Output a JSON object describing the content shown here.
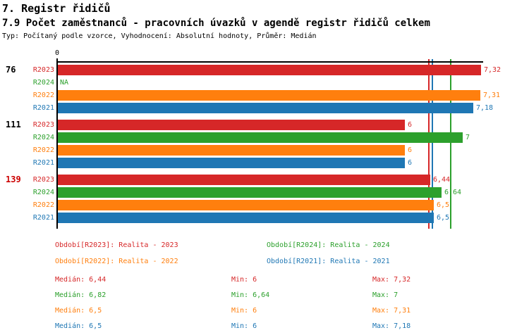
{
  "header": {
    "title": "7. Registr řidičů",
    "subtitle": "7.9 Počet zaměstnanců - pracovních úvazků v agendě registr řidičů celkem",
    "meta": "Typ: Počítaný podle vzorce, Vyhodnocení: Absolutní hodnoty, Průměr: Medián"
  },
  "colors": {
    "R2023": "#d62728",
    "R2024": "#2ca02c",
    "R2022": "#ff7f0e",
    "R2021": "#1f77b4",
    "axis": "#000000",
    "group_label_default": "#000000",
    "group_label_highlight": "#cc0000"
  },
  "chart_data": {
    "type": "bar",
    "orientation": "horizontal",
    "title": "7.9 Počet zaměstnanců - pracovních úvazků v agendě registr řidičů celkem",
    "xlim": [
      0,
      7.37
    ],
    "origin_tick_label": "0",
    "grid": false,
    "series_order": [
      "R2023",
      "R2024",
      "R2022",
      "R2021"
    ],
    "groups": [
      {
        "label": "76",
        "label_color": "#000000",
        "bars": [
          {
            "series": "R2023",
            "value": 7.32,
            "display": "7,32"
          },
          {
            "series": "R2024",
            "value": null,
            "display": "NA"
          },
          {
            "series": "R2022",
            "value": 7.31,
            "display": "7,31"
          },
          {
            "series": "R2021",
            "value": 7.18,
            "display": "7,18"
          }
        ]
      },
      {
        "label": "111",
        "label_color": "#000000",
        "bars": [
          {
            "series": "R2023",
            "value": 6,
            "display": "6"
          },
          {
            "series": "R2024",
            "value": 7,
            "display": "7"
          },
          {
            "series": "R2022",
            "value": 6,
            "display": "6"
          },
          {
            "series": "R2021",
            "value": 6,
            "display": "6"
          }
        ]
      },
      {
        "label": "139",
        "label_color": "#cc0000",
        "bars": [
          {
            "series": "R2023",
            "value": 6.44,
            "display": "6,44"
          },
          {
            "series": "R2024",
            "value": 6.64,
            "display": "6,64"
          },
          {
            "series": "R2022",
            "value": 6.5,
            "display": "6,5"
          },
          {
            "series": "R2021",
            "value": 6.5,
            "display": "6,5"
          }
        ]
      }
    ],
    "reference_lines": [
      {
        "series": "R2023",
        "value": 6.44,
        "meaning": "Medián R2023"
      },
      {
        "series": "R2022",
        "value": 6.5,
        "meaning": "Medián R2022"
      },
      {
        "series": "R2021",
        "value": 6.5,
        "meaning": "Medián R2021"
      },
      {
        "series": "R2024",
        "value": 6.82,
        "meaning": "Medián R2024"
      }
    ]
  },
  "legend": {
    "items": [
      {
        "series": "R2023",
        "text": "Období[R2023]: Realita - 2023"
      },
      {
        "series": "R2024",
        "text": "Období[R2024]: Realita - 2024"
      },
      {
        "series": "R2022",
        "text": "Období[R2022]: Realita - 2022"
      },
      {
        "series": "R2021",
        "text": "Období[R2021]: Realita - 2021"
      }
    ]
  },
  "stats": {
    "rows": [
      {
        "series": "R2023",
        "median": "Medián: 6,44",
        "min": "Min: 6",
        "max": "Max: 7,32"
      },
      {
        "series": "R2024",
        "median": "Medián: 6,82",
        "min": "Min: 6,64",
        "max": "Max: 7"
      },
      {
        "series": "R2022",
        "median": "Medián: 6,5",
        "min": "Min: 6",
        "max": "Max: 7,31"
      },
      {
        "series": "R2021",
        "median": "Medián: 6,5",
        "min": "Min: 6",
        "max": "Max: 7,18"
      }
    ]
  }
}
